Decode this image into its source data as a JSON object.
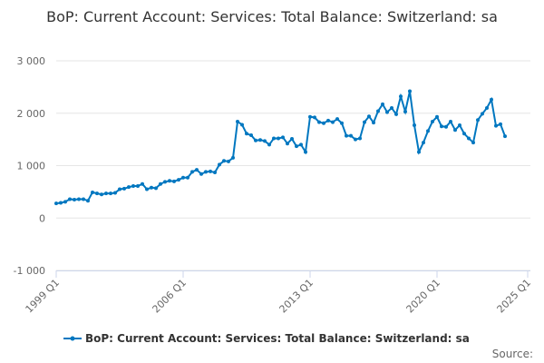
{
  "chart_data": {
    "type": "line",
    "title": "BoP: Current Account: Services: Total Balance: Switzerland: sa",
    "xlabel": "",
    "ylabel": "",
    "ylim": [
      -1000,
      3000
    ],
    "yticks": [
      -1000,
      0,
      1000,
      2000,
      3000
    ],
    "ytick_labels": [
      "-1 000",
      "0",
      "1 000",
      "2 000",
      "3 000"
    ],
    "xticks": [
      {
        "label": "1999 Q1",
        "index": 0
      },
      {
        "label": "2006 Q1",
        "index": 28
      },
      {
        "label": "2013 Q1",
        "index": 56
      },
      {
        "label": "2020 Q1",
        "index": 84
      },
      {
        "label": "2025 Q1",
        "index": 104
      }
    ],
    "x_start": "1999 Q1",
    "x_end": "2023 Q4",
    "grid": true,
    "legend_position": "bottom",
    "color": "#0077c0",
    "series": [
      {
        "name": "BoP: Current Account: Services: Total Balance: Switzerland: sa",
        "values": [
          280,
          290,
          310,
          360,
          350,
          360,
          360,
          330,
          490,
          470,
          450,
          470,
          470,
          480,
          550,
          560,
          590,
          610,
          610,
          650,
          550,
          580,
          570,
          650,
          690,
          710,
          700,
          730,
          770,
          770,
          880,
          920,
          840,
          880,
          890,
          870,
          1020,
          1090,
          1080,
          1150,
          1840,
          1780,
          1610,
          1580,
          1480,
          1490,
          1470,
          1400,
          1520,
          1520,
          1540,
          1420,
          1510,
          1370,
          1400,
          1260,
          1930,
          1920,
          1830,
          1810,
          1860,
          1830,
          1890,
          1810,
          1570,
          1570,
          1500,
          1520,
          1830,
          1940,
          1820,
          2040,
          2170,
          2020,
          2100,
          1980,
          2320,
          2030,
          2420,
          1770,
          1260,
          1440,
          1660,
          1840,
          1930,
          1750,
          1740,
          1840,
          1680,
          1770,
          1610,
          1520,
          1440,
          1870,
          1990,
          2100,
          2260,
          1760,
          1790,
          1560
        ]
      }
    ],
    "source_label": "Source:"
  }
}
